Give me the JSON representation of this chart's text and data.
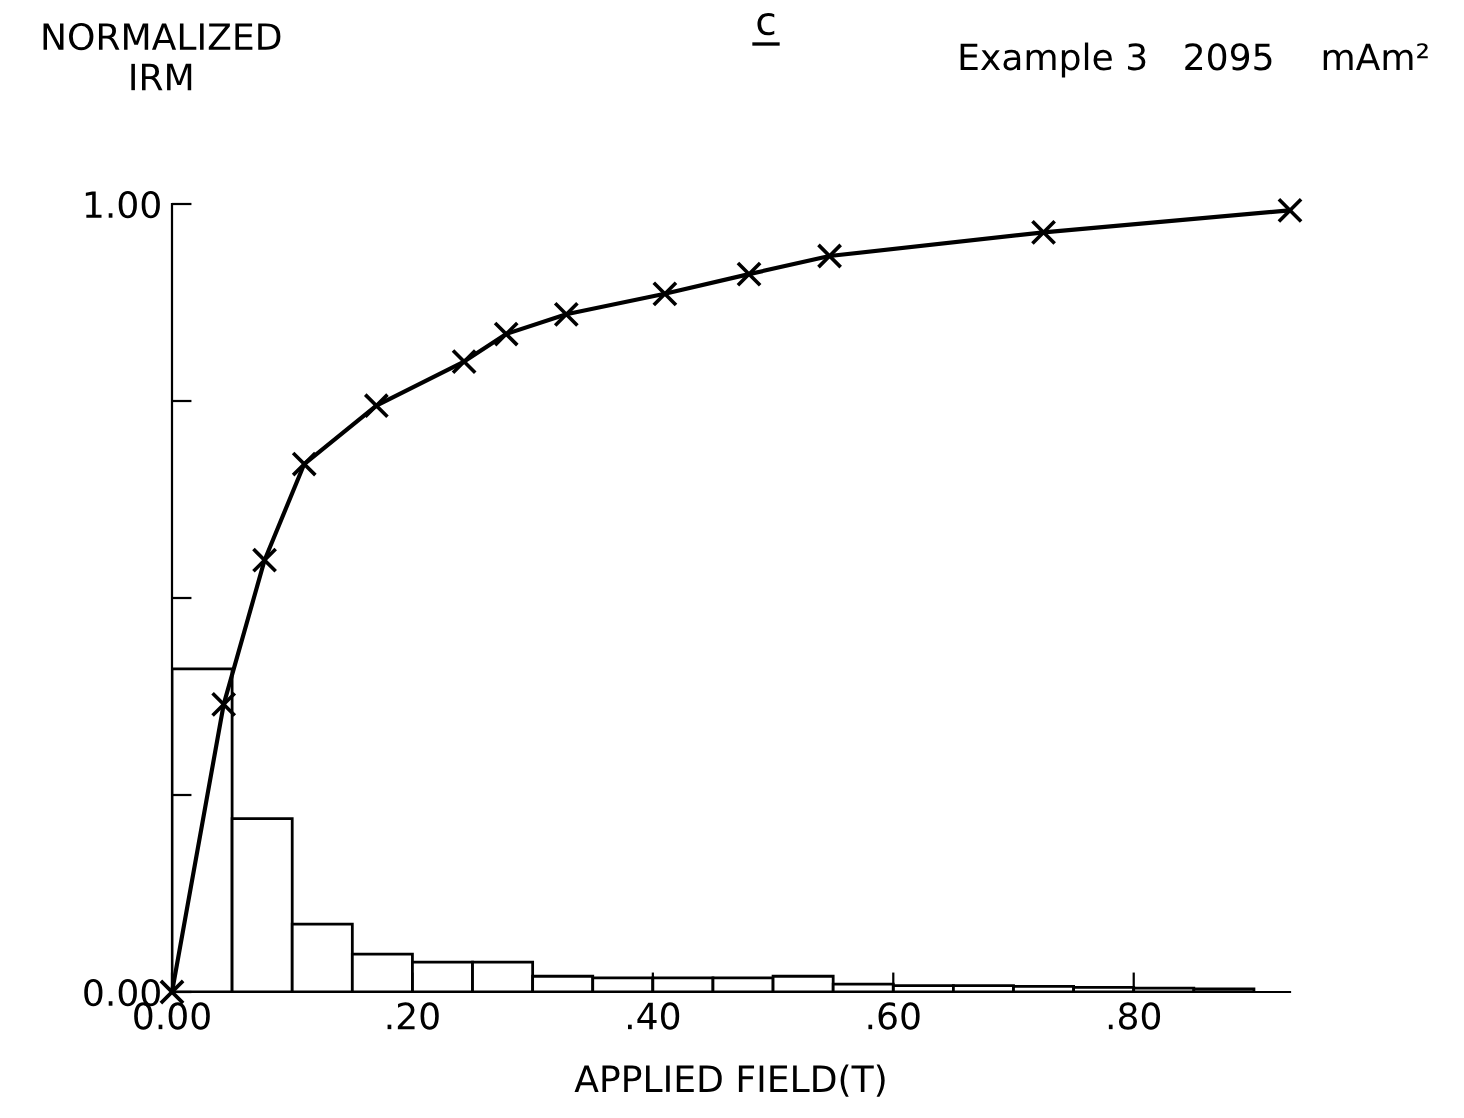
{
  "chart_data": {
    "type": "histogram",
    "title": "c",
    "subtitle": "Example 3   2095    mAm²",
    "ylabel": "NORMALIZED\nIRM",
    "xlabel": "APPLIED FIELD(T)",
    "bins": [
      0,
      0.05,
      0.1,
      0.15,
      0.2,
      0.25,
      0.3,
      0.35,
      0.4,
      0.45,
      0.5,
      0.55,
      0.6,
      0.65,
      0.7,
      0.75,
      0.8,
      0.85,
      0.9
    ],
    "values": [
      0.41,
      0.22,
      0.086,
      0.048,
      0.038,
      0.038,
      0.02,
      0.018,
      0.018,
      0.018,
      0.02,
      0.01,
      0.008,
      0.008,
      0.007,
      0.006,
      0.005,
      0.004
    ],
    "color": "#000000",
    "series": [
      {
        "type": "line",
        "color": "#000000",
        "marker": "cross",
        "x": [
          0,
          0.043,
          0.077,
          0.11,
          0.17,
          0.243,
          0.278,
          0.328,
          0.41,
          0.48,
          0.547,
          0.725,
          0.93
        ],
        "values": [
          0,
          0.365,
          0.548,
          0.67,
          0.744,
          0.8,
          0.835,
          0.86,
          0.886,
          0.911,
          0.934,
          0.964,
          0.992
        ]
      }
    ],
    "xlim": [
      0,
      0.93
    ],
    "ylim": [
      0,
      1
    ],
    "xticks": [
      {
        "value": 0,
        "label": "0.00"
      },
      {
        "value": 0.2,
        "label": ".20"
      },
      {
        "value": 0.4,
        "label": ".40"
      },
      {
        "value": 0.6,
        "label": ".60"
      },
      {
        "value": 0.8,
        "label": ".80"
      }
    ],
    "yticks": [
      {
        "value": 0,
        "label": "0.00"
      },
      {
        "value": 0.25,
        "label": null
      },
      {
        "value": 0.5,
        "label": null
      },
      {
        "value": 0.75,
        "label": null
      },
      {
        "value": 1,
        "label": "1.00"
      }
    ],
    "grid": false,
    "legend": false
  }
}
